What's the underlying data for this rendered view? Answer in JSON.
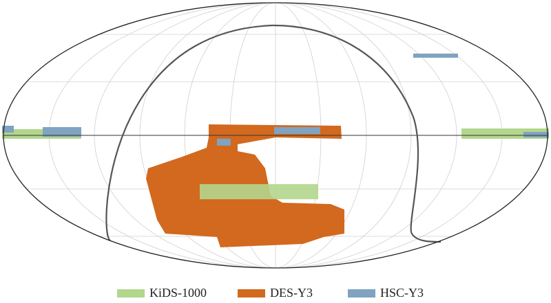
{
  "legend": [
    {
      "name": "KiDS-1000",
      "color": "#b2d68c"
    },
    {
      "name": "DES-Y3",
      "color": "#d2691e"
    },
    {
      "name": "HSC-Y3",
      "color": "#7fa3c0"
    }
  ]
}
